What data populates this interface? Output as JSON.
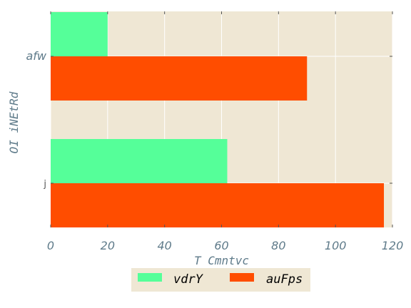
{
  "chart_data": {
    "type": "bar",
    "orientation": "horizontal",
    "categories": [
      "afw",
      "j"
    ],
    "series": [
      {
        "name": "vdrY",
        "color": "#55ff99",
        "values": [
          20,
          62
        ]
      },
      {
        "name": "auFps",
        "color": "#ff4d00",
        "values": [
          90,
          117
        ]
      }
    ],
    "xlabel": "T Cmntvc",
    "ylabel": "OI iNEtRd",
    "xlim": [
      0,
      120
    ],
    "xticks": [
      "0",
      "20",
      "40",
      "60",
      "80",
      "100",
      "120"
    ],
    "grid": true,
    "legend_position": "bottom-center",
    "background_color": "#efe7d4"
  }
}
